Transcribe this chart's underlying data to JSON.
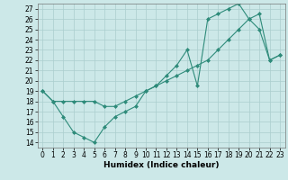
{
  "line1_x": [
    0,
    1,
    2,
    3,
    4,
    5,
    6,
    7,
    8,
    9,
    10,
    11,
    12,
    13,
    14,
    15,
    16,
    17,
    18,
    19,
    20,
    21,
    22,
    23
  ],
  "line1_y": [
    19,
    18,
    16.5,
    15,
    14.5,
    14,
    15.5,
    16.5,
    17,
    17.5,
    19,
    19.5,
    20.5,
    21.5,
    23,
    19.5,
    26,
    26.5,
    27,
    27.5,
    26,
    25,
    22,
    22.5
  ],
  "line2_x": [
    0,
    1,
    2,
    3,
    4,
    5,
    6,
    7,
    8,
    9,
    10,
    11,
    12,
    13,
    14,
    15,
    16,
    17,
    18,
    19,
    20,
    21,
    22,
    23
  ],
  "line2_y": [
    19,
    18,
    18,
    18,
    18,
    18,
    17.5,
    17.5,
    18,
    18.5,
    19,
    19.5,
    20,
    20.5,
    21,
    21.5,
    22,
    23,
    24,
    25,
    26,
    26.5,
    22,
    22.5
  ],
  "color": "#2e8b7a",
  "bg_color": "#cce8e8",
  "grid_color": "#aacece",
  "xlabel": "Humidex (Indice chaleur)",
  "xlim": [
    -0.5,
    23.5
  ],
  "ylim": [
    13.5,
    27.5
  ],
  "xticks": [
    0,
    1,
    2,
    3,
    4,
    5,
    6,
    7,
    8,
    9,
    10,
    11,
    12,
    13,
    14,
    15,
    16,
    17,
    18,
    19,
    20,
    21,
    22,
    23
  ],
  "yticks": [
    14,
    15,
    16,
    17,
    18,
    19,
    20,
    21,
    22,
    23,
    24,
    25,
    26,
    27
  ],
  "xlabel_fontsize": 6.5,
  "tick_fontsize": 5.5,
  "marker": "D",
  "markersize": 2.0,
  "linewidth": 0.8
}
